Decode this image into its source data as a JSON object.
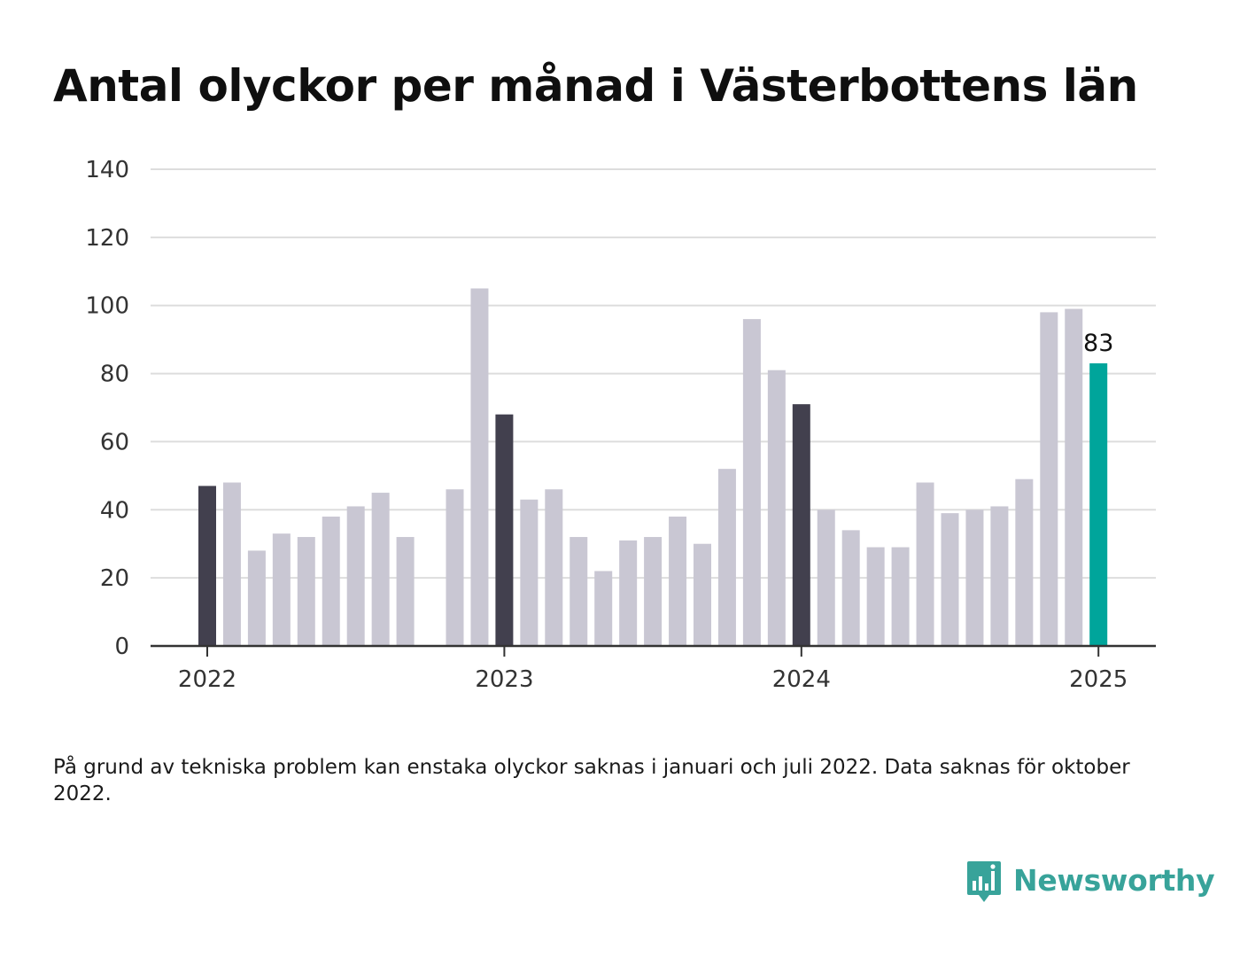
{
  "title": "Antal olyckor per månad i Västerbottens län",
  "footnote": "På grund av tekniska problem kan enstaka olyckor saknas i januari och juli 2022. Data saknas för oktober 2022.",
  "brand": {
    "name": "Newsworthy",
    "icon": "newsworthy-chart-icon",
    "color": "#38a39a"
  },
  "colors": {
    "december": "#42404e",
    "regular": "#c9c7d3",
    "latest": "#00a59b",
    "grid": "#dddddd",
    "axis": "#333333"
  },
  "chart_data": {
    "type": "bar",
    "title": "Antal olyckor per månad i Västerbottens län",
    "xlabel": "",
    "ylabel": "",
    "ylim": [
      0,
      140
    ],
    "yticks": [
      "0",
      "20",
      "40",
      "60",
      "80",
      "100",
      "120",
      "140"
    ],
    "xticks": [
      "2022",
      "2023",
      "2024",
      "2025"
    ],
    "grid": true,
    "categories": [
      "2022-01",
      "2022-02",
      "2022-03",
      "2022-04",
      "2022-05",
      "2022-06",
      "2022-07",
      "2022-08",
      "2022-09",
      "2022-10",
      "2022-11",
      "2022-12",
      "2023-01",
      "2023-02",
      "2023-03",
      "2023-04",
      "2023-05",
      "2023-06",
      "2023-07",
      "2023-08",
      "2023-09",
      "2023-10",
      "2023-11",
      "2023-12",
      "2024-01",
      "2024-02",
      "2024-03",
      "2024-04",
      "2024-05",
      "2024-06",
      "2024-07",
      "2024-08",
      "2024-09",
      "2024-10",
      "2024-11",
      "2024-12",
      "2025-01"
    ],
    "values": [
      47,
      48,
      28,
      33,
      32,
      38,
      41,
      45,
      32,
      null,
      46,
      105,
      68,
      43,
      46,
      32,
      22,
      31,
      32,
      38,
      30,
      52,
      96,
      81,
      71,
      40,
      34,
      29,
      29,
      48,
      39,
      40,
      41,
      49,
      98,
      99,
      83
    ],
    "data_labels": [
      {
        "category": "2025-01",
        "label": "83"
      }
    ]
  }
}
